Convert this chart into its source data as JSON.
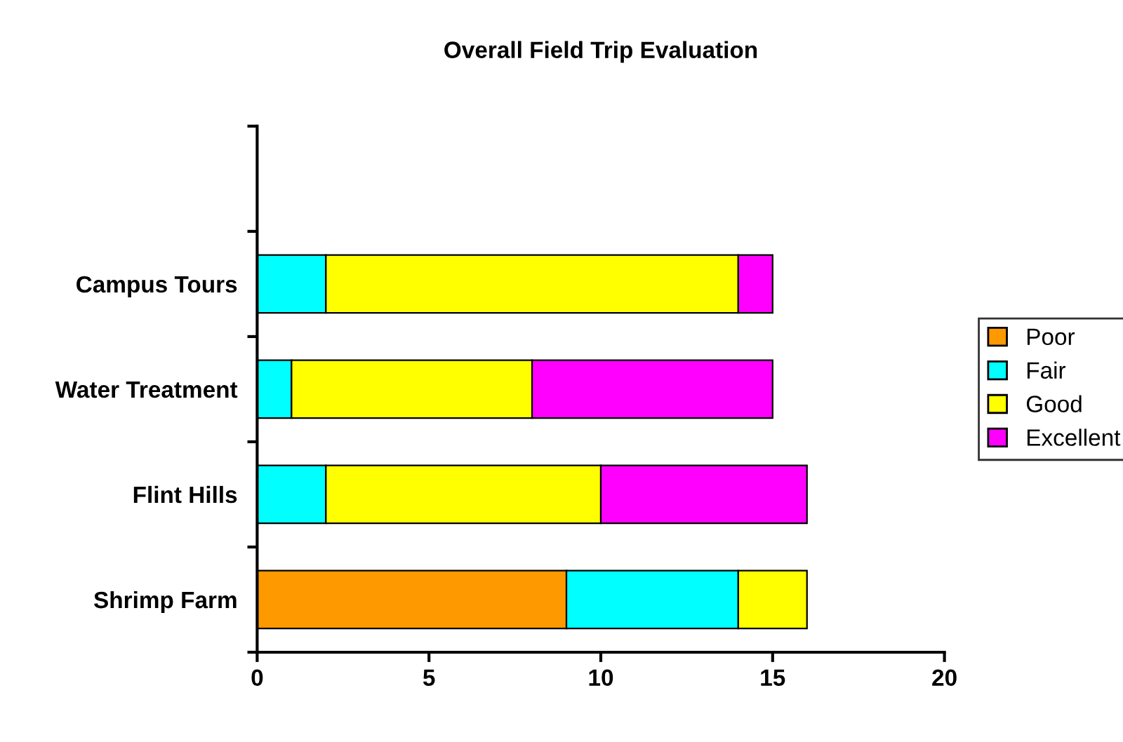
{
  "chart_data": {
    "type": "bar",
    "orientation": "horizontal",
    "stacked": true,
    "title": "Overall Field Trip Evaluation",
    "categories": [
      null,
      "Campus Tours",
      "Water Treatment",
      "Flint Hills",
      "Shrimp Farm"
    ],
    "series": [
      {
        "name": "Poor",
        "color": "#ff9900",
        "values": [
          null,
          0,
          0,
          0,
          9
        ]
      },
      {
        "name": "Fair",
        "color": "#00ffff",
        "values": [
          null,
          2,
          1,
          2,
          5
        ]
      },
      {
        "name": "Good",
        "color": "#ffff00",
        "values": [
          null,
          12,
          7,
          8,
          2
        ]
      },
      {
        "name": "Excellent",
        "color": "#ff00ff",
        "values": [
          null,
          1,
          7,
          6,
          0
        ]
      }
    ],
    "xlim": [
      0,
      20
    ],
    "xticks": [
      0,
      5,
      10,
      15,
      20
    ],
    "grid": false,
    "legend": "right"
  }
}
